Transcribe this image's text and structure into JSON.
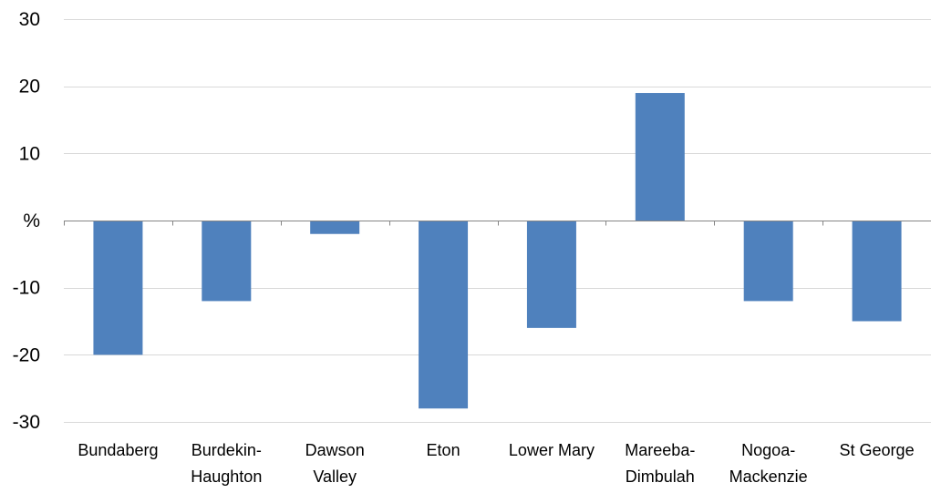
{
  "chart_data": {
    "type": "bar",
    "categories": [
      "Bundaberg",
      "Burdekin-Haughton",
      "Dawson Valley",
      "Eton",
      "Lower Mary",
      "Mareeba-Dimbulah",
      "Nogoa-Mackenzie",
      "St George"
    ],
    "category_label_lines": [
      [
        "Bundaberg"
      ],
      [
        "Burdekin-",
        "Haughton"
      ],
      [
        "Dawson",
        "Valley"
      ],
      [
        "Eton"
      ],
      [
        "Lower Mary"
      ],
      [
        "Mareeba-",
        "Dimbulah"
      ],
      [
        "Nogoa-",
        "Mackenzie"
      ],
      [
        "St George"
      ]
    ],
    "values": [
      -20,
      -12,
      -2,
      -28,
      -16,
      19,
      -12,
      -15
    ],
    "title": "",
    "xlabel": "",
    "ylabel": "",
    "ylim": [
      -30,
      30
    ],
    "y_ticks": [
      30,
      20,
      10,
      0,
      -10,
      -20,
      -30
    ],
    "y_tick_labels": [
      "30",
      "20",
      "10",
      "%",
      "-10",
      "-20",
      "-30"
    ],
    "grid": true,
    "legend": "none",
    "colors": {
      "bar": "#4f81bd",
      "gridline": "#d9d9d9",
      "axis": "#868686"
    }
  }
}
